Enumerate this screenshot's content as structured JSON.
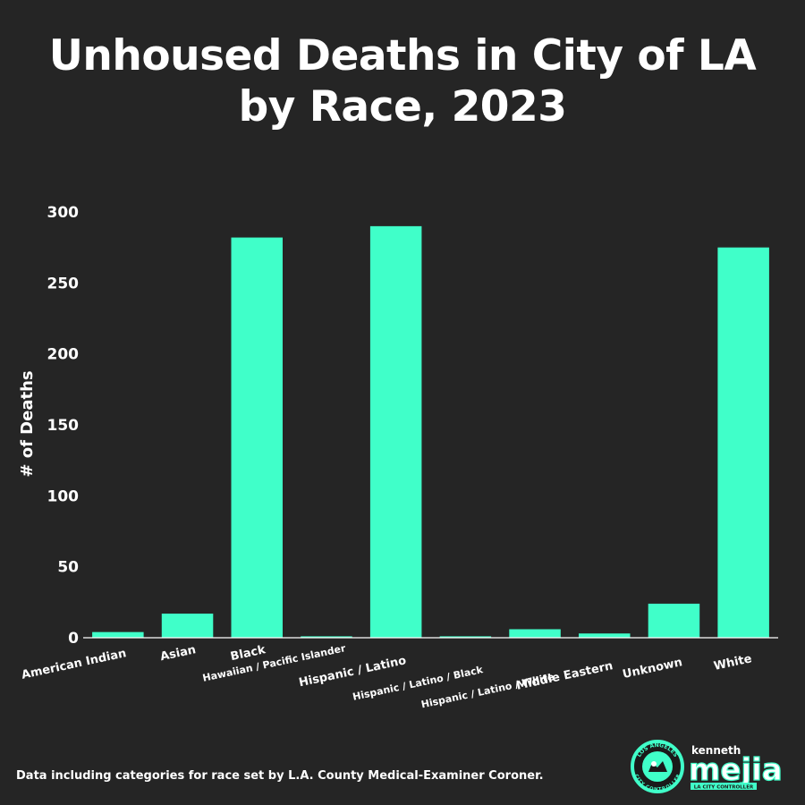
{
  "chart_data": {
    "type": "bar",
    "title_lines": [
      "Unhoused Deaths in City of LA",
      "by Race, 2023"
    ],
    "ylabel": "# of Deaths",
    "xlabel": "",
    "ylim": [
      0,
      300
    ],
    "yticks": [
      0,
      50,
      100,
      150,
      200,
      250,
      300
    ],
    "categories": [
      "American Indian",
      "Asian",
      "Black",
      "Hawaiian / Pacific Islander",
      "Hispanic / Latino",
      "Hispanic / Latino / Black",
      "Hispanic / Latino / White",
      "Middle Eastern",
      "Unknown",
      "White"
    ],
    "values": [
      4,
      17,
      282,
      1,
      290,
      1,
      6,
      3,
      24,
      275
    ],
    "bar_color": "#40ffc9",
    "grid": false
  },
  "footnote": "Data including categories for race set by L.A. County Medical-Examiner Coroner.",
  "logo": {
    "seal_top": "LOS ANGELES",
    "seal_bottom": "CITY CONTROLLER",
    "name_small": "kenneth",
    "name_big": "mejia",
    "tagline": "LA CITY CONTROLLER",
    "accent_color": "#40ffc9"
  }
}
